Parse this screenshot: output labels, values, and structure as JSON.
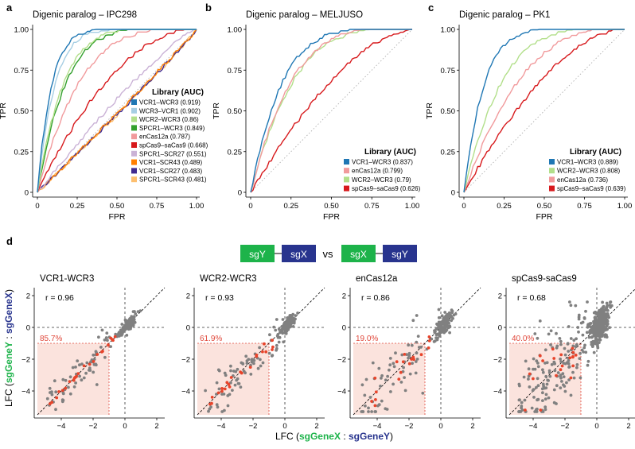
{
  "panels": [
    {
      "id": "a",
      "letter": "a"
    },
    {
      "id": "b",
      "letter": "b"
    },
    {
      "id": "c",
      "letter": "c"
    },
    {
      "id": "d",
      "letter": "d"
    }
  ],
  "roc_axis": {
    "xlabel": "FPR",
    "ylabel": "TPR",
    "ticks": [
      0,
      0.25,
      0.5,
      0.75,
      1.0
    ],
    "tick_labels": [
      "0",
      "0.25",
      "0.50",
      "0.75",
      "1.00"
    ],
    "legend_title": "Library (AUC)"
  },
  "colors": {
    "VCR1-WCR3": "#1f77b4",
    "WCR3-VCR1": "#a6cee3",
    "WCR2-WCR3": "#b2df8a",
    "SPCR1-WCR3": "#33a02c",
    "enCas12a": "#f19a9c",
    "spCas9-saCas9": "#d7191c",
    "SPCR1-SCR27": "#cab2d6",
    "VCR1-SCR43": "#ff7f00",
    "VCR1-SCR27": "#3f2a90",
    "SPCR1-SCR43": "#fdbf6f",
    "point_grey": "#808080",
    "highlight_red": "#e8442b",
    "box_fill": "#fbe3dd",
    "box_text": "#e0473a",
    "sgGreen": "#1db34a",
    "sgBlue": "#28348e"
  },
  "chart_data": [
    {
      "type": "line",
      "panel": "a",
      "title": "Digenic paralog – IPC298",
      "xlabel": "FPR",
      "ylabel": "TPR",
      "xlim": [
        0,
        1
      ],
      "ylim": [
        0,
        1
      ],
      "legend_title": "Library (AUC)",
      "series": [
        {
          "name": "VCR1–WCR3 (0.919)",
          "key": "VCR1-WCR3",
          "auc": 0.919
        },
        {
          "name": "WCR3–VCR1 (0.902)",
          "key": "WCR3-VCR1",
          "auc": 0.902
        },
        {
          "name": "WCR2–WCR3 (0.86)",
          "key": "WCR2-WCR3",
          "auc": 0.86
        },
        {
          "name": "SPCR1–WCR3 (0.849)",
          "key": "SPCR1-WCR3",
          "auc": 0.849
        },
        {
          "name": "enCas12a (0.787)",
          "key": "enCas12a",
          "auc": 0.787
        },
        {
          "name": "spCas9–saCas9 (0.668)",
          "key": "spCas9-saCas9",
          "auc": 0.668
        },
        {
          "name": "SPCR1–SCR27 (0.551)",
          "key": "SPCR1-SCR27",
          "auc": 0.551
        },
        {
          "name": "VCR1–SCR43 (0.489)",
          "key": "VCR1-SCR43",
          "auc": 0.489
        },
        {
          "name": "VCR1–SCR27 (0.483)",
          "key": "VCR1-SCR27",
          "auc": 0.483
        },
        {
          "name": "SPCR1–SCR43 (0.481)",
          "key": "SPCR1-SCR43",
          "auc": 0.481
        }
      ]
    },
    {
      "type": "line",
      "panel": "b",
      "title": "Digenic paralog – MELJUSO",
      "xlabel": "FPR",
      "ylabel": "TPR",
      "xlim": [
        0,
        1
      ],
      "ylim": [
        0,
        1
      ],
      "legend_title": "Library (AUC)",
      "series": [
        {
          "name": "VCR1–WCR3 (0.837)",
          "key": "VCR1-WCR3",
          "auc": 0.837
        },
        {
          "name": "enCas12a (0.799)",
          "key": "enCas12a",
          "auc": 0.799
        },
        {
          "name": "WCR2–WCR3 (0.79)",
          "key": "WCR2-WCR3",
          "auc": 0.79
        },
        {
          "name": "spCas9–saCas9 (0.626)",
          "key": "spCas9-saCas9",
          "auc": 0.626
        }
      ]
    },
    {
      "type": "line",
      "panel": "c",
      "title": "Digenic paralog – PK1",
      "xlabel": "FPR",
      "ylabel": "TPR",
      "xlim": [
        0,
        1
      ],
      "ylim": [
        0,
        1
      ],
      "legend_title": "Library (AUC)",
      "series": [
        {
          "name": "VCR1–WCR3 (0.889)",
          "key": "VCR1-WCR3",
          "auc": 0.889
        },
        {
          "name": "WCR2–WCR3 (0.808)",
          "key": "WCR2-WCR3",
          "auc": 0.808
        },
        {
          "name": "enCas12a (0.736)",
          "key": "enCas12a",
          "auc": 0.736
        },
        {
          "name": "spCas9–saCas9 (0.639)",
          "key": "spCas9-saCas9",
          "auc": 0.639
        }
      ]
    },
    {
      "type": "scatter",
      "panel": "d",
      "xlim": [
        -5.5,
        2.5
      ],
      "ylim": [
        -5.5,
        2.5
      ],
      "xticks": [
        -4,
        -2,
        0,
        2
      ],
      "yticks": [
        2,
        0,
        -2,
        -4
      ],
      "tick_labels_x": [
        "−4",
        "−2",
        "0",
        "2"
      ],
      "tick_labels_y": [
        "2",
        "0",
        "−2",
        "−4"
      ],
      "threshold": -1,
      "xlabel": {
        "pre": "LFC (",
        "g": "sgGeneX",
        "sep": " : ",
        "b": "sgGeneY",
        "post": ")"
      },
      "ylabel": {
        "pre": "LFC (",
        "g": "sgGeneY",
        "sep": " : ",
        "b": "sgGeneX",
        "post": ")"
      },
      "subplots": [
        {
          "title": "VCR1-WCR3",
          "r": "r = 0.96",
          "r_value": 0.96,
          "pct": "85.7%",
          "pct_value": 85.7
        },
        {
          "title": "WCR2-WCR3",
          "r": "r = 0.93",
          "r_value": 0.93,
          "pct": "61.9%",
          "pct_value": 61.9
        },
        {
          "title": "enCas12a",
          "r": "r = 0.86",
          "r_value": 0.86,
          "pct": "19.0%",
          "pct_value": 19.0
        },
        {
          "title": "spCas9-saCas9",
          "r": "r = 0.68",
          "r_value": 0.68,
          "pct": "40.0%",
          "pct_value": 40.0
        }
      ]
    }
  ],
  "constructs": {
    "left": [
      "sgY",
      "sgX"
    ],
    "vs": "vs",
    "right": [
      "sgX",
      "sgY"
    ]
  }
}
